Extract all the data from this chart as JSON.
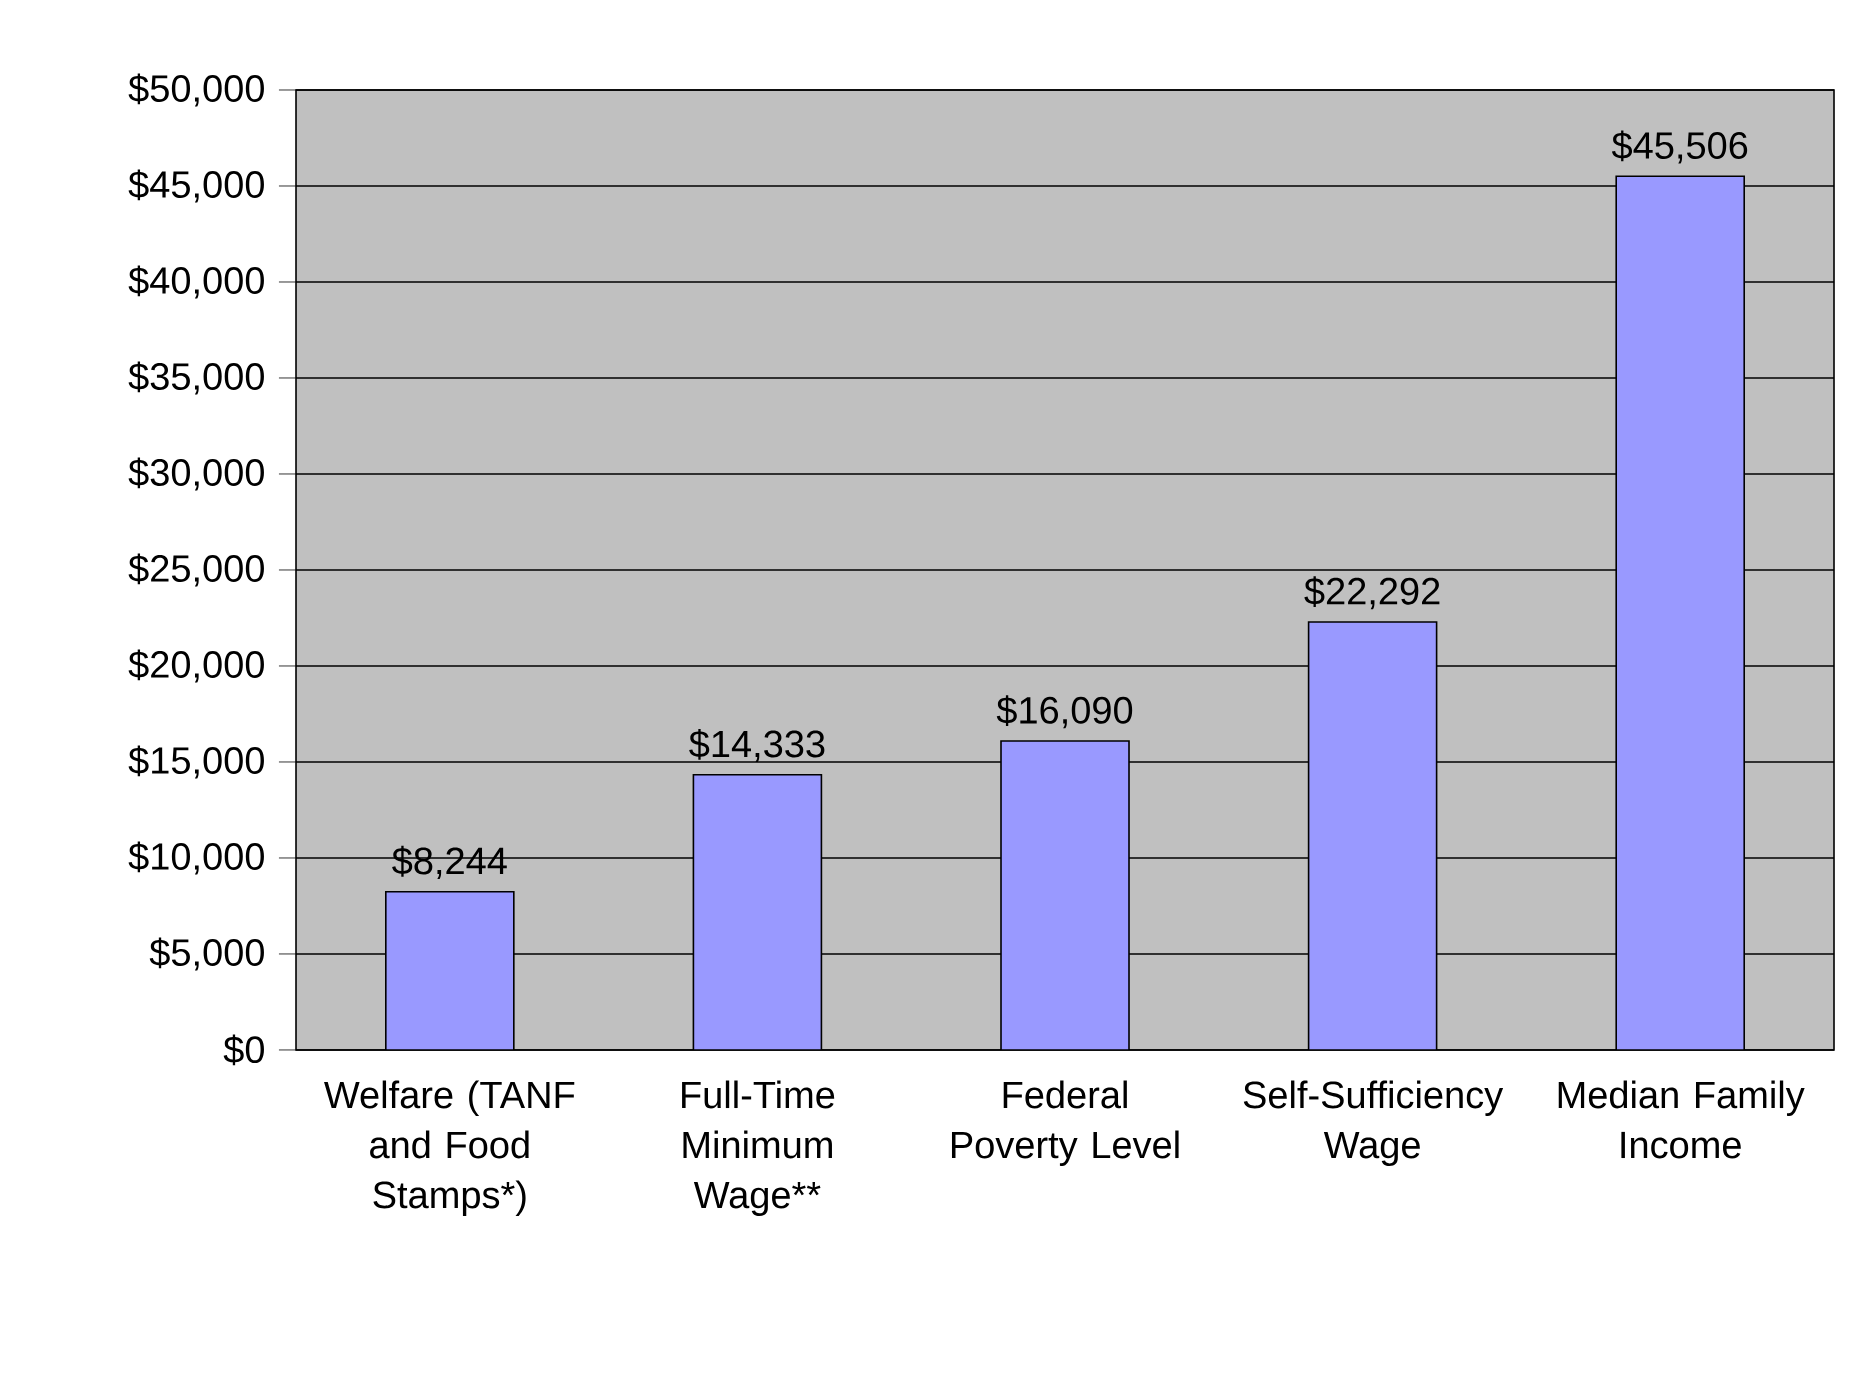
{
  "chart_data": {
    "type": "bar",
    "categories": [
      "Welfare (TANF and Food Stamps*)",
      "Full-Time Minimum Wage**",
      "Federal Poverty Level",
      "Self-Sufficiency Wage",
      "Median Family Income"
    ],
    "values": [
      8244,
      14333,
      16090,
      22292,
      45506
    ],
    "value_labels": [
      "$8,244",
      "$14,333",
      "$16,090",
      "$22,292",
      "$45,506"
    ],
    "color": "#9999ff",
    "ylim": [
      0,
      50000
    ],
    "yticks": [
      {
        "value": 0,
        "label": "$0"
      },
      {
        "value": 5000,
        "label": "$5,000"
      },
      {
        "value": 10000,
        "label": "$10,000"
      },
      {
        "value": 15000,
        "label": "$15,000"
      },
      {
        "value": 20000,
        "label": "$20,000"
      },
      {
        "value": 25000,
        "label": "$25,000"
      },
      {
        "value": 30000,
        "label": "$30,000"
      },
      {
        "value": 35000,
        "label": "$35,000"
      },
      {
        "value": 40000,
        "label": "$40,000"
      },
      {
        "value": 45000,
        "label": "$45,000"
      },
      {
        "value": 50000,
        "label": "$50,000"
      }
    ],
    "grid": "y"
  }
}
